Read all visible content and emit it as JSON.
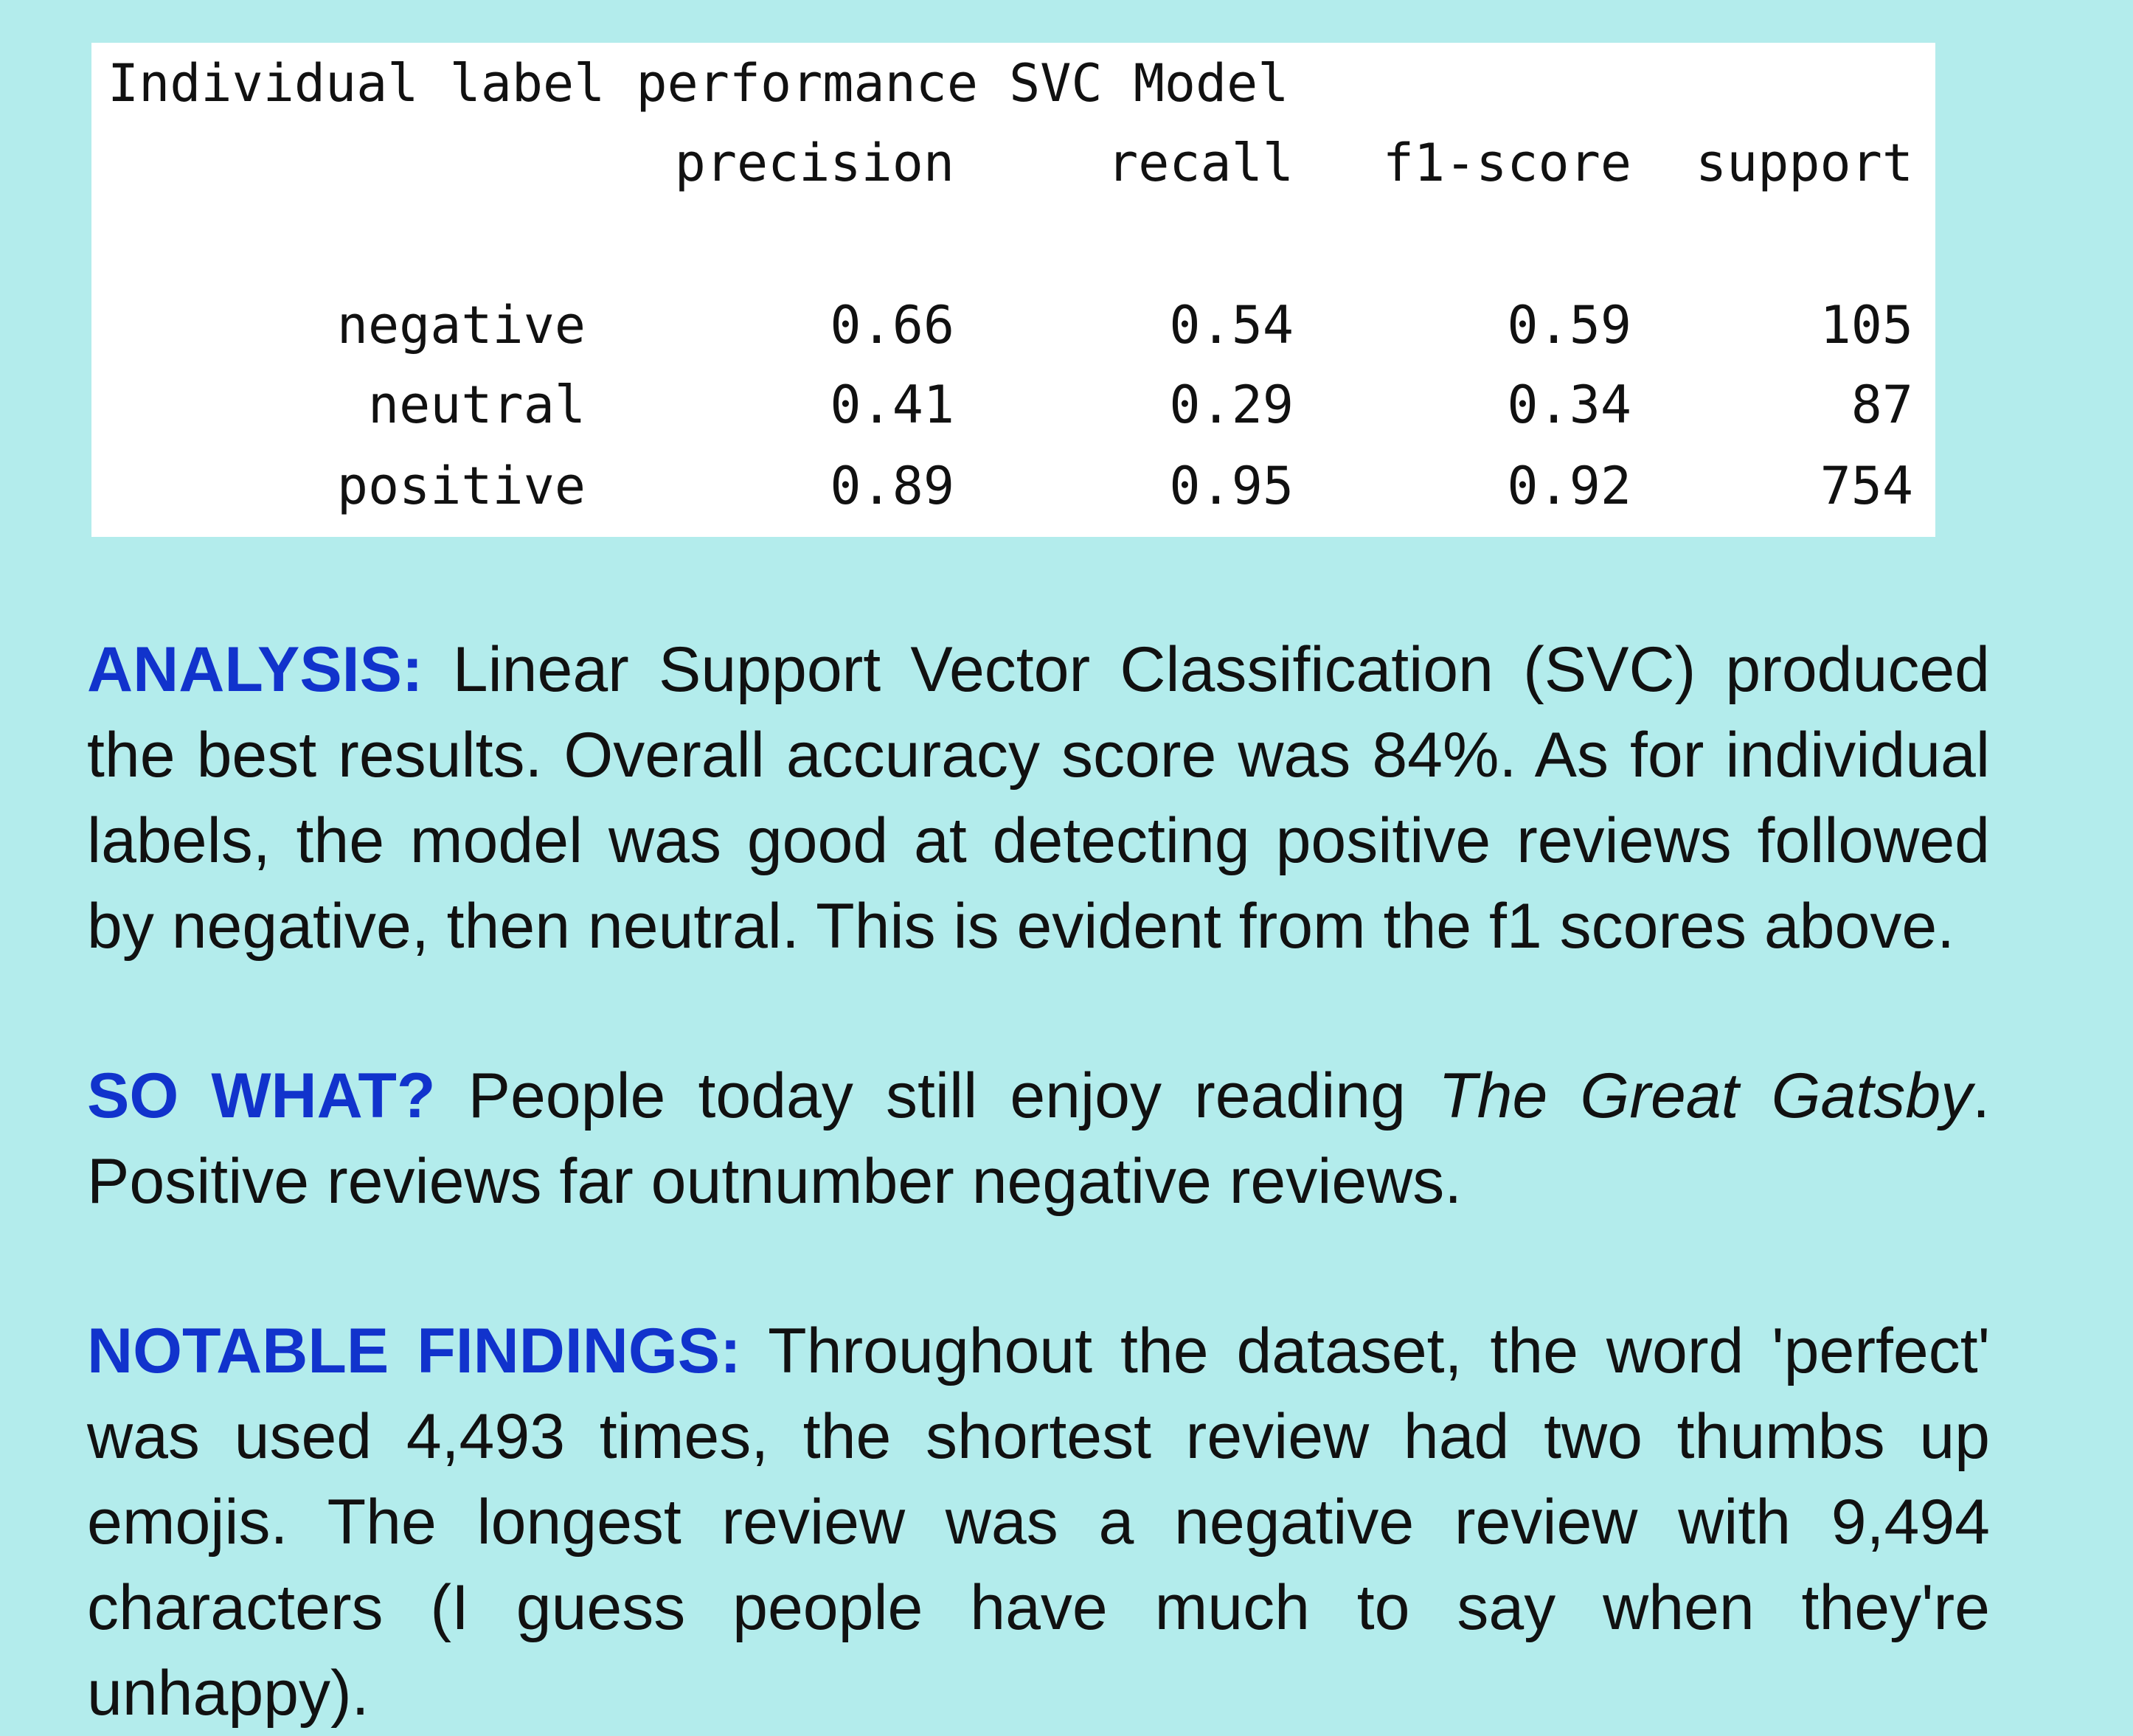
{
  "report": {
    "title": "Individual label performance SVC Model",
    "headers": [
      "precision",
      "recall",
      "f1-score",
      "support"
    ],
    "rows": [
      {
        "label": "negative",
        "precision": "0.66",
        "recall": "0.54",
        "f1": "0.59",
        "support": "105"
      },
      {
        "label": "neutral",
        "precision": "0.41",
        "recall": "0.29",
        "f1": "0.34",
        "support": "87"
      },
      {
        "label": "positive",
        "precision": "0.89",
        "recall": "0.95",
        "f1": "0.92",
        "support": "754"
      }
    ]
  },
  "analysis": {
    "keyword": "ANALYSIS:",
    "text": "Linear Support Vector Classification (SVC) produced the best results. Overall accuracy score was 84%. As for individual labels, the model was good at detecting positive reviews followed by negative, then neutral. This is evident from the f1 scores above."
  },
  "so_what": {
    "keyword": "SO WHAT?",
    "text_before": "People today still enjoy reading",
    "book_title": "The Great Gatsby",
    "text_after": ". Positive reviews far outnumber negative reviews."
  },
  "notable_findings": {
    "keyword": "NOTABLE FINDINGS:",
    "text": "Throughout the dataset, the word 'perfect' was used 4,493 times, the shortest review had two thumbs up emojis. The longest review was a negative review with 9,494 characters (I guess people have much to say when they're unhappy)."
  },
  "colors": {
    "background": "#b3ecec",
    "keyword": "#1133cc",
    "panel": "#ffffff"
  }
}
